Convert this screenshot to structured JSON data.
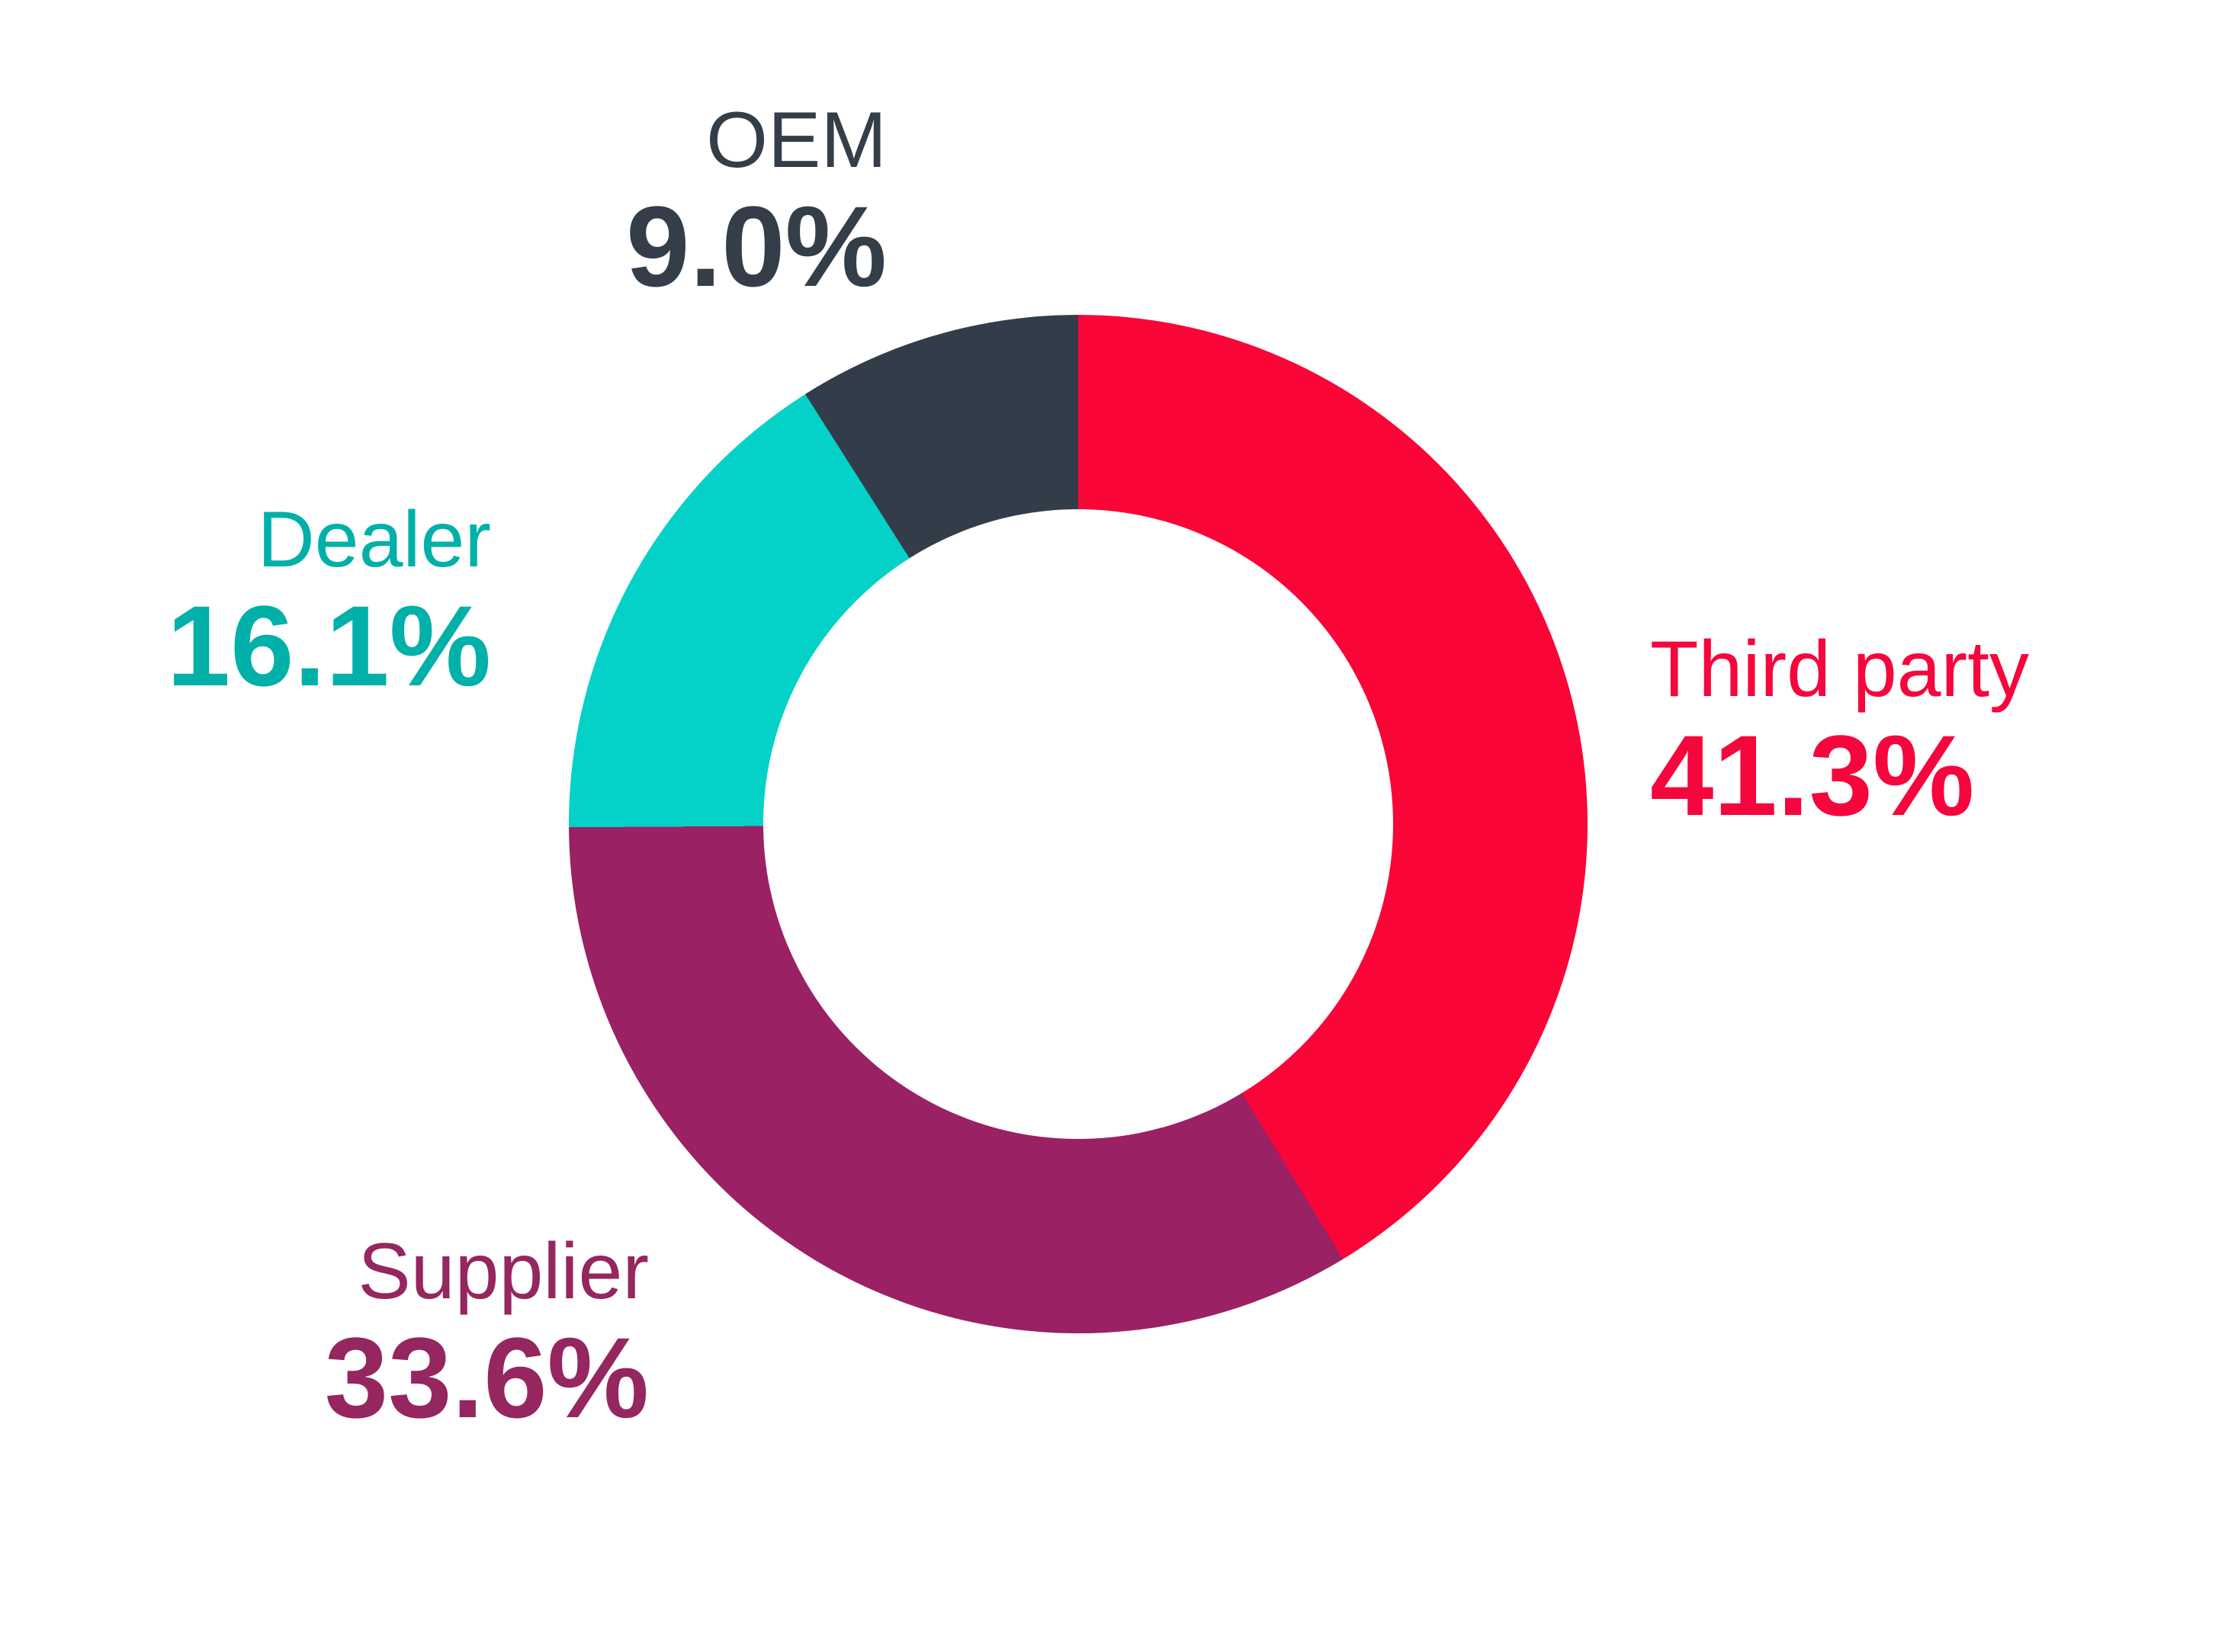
{
  "page": {
    "background": "#FFFFFF"
  },
  "chart_data": {
    "type": "pie",
    "subtype": "donut",
    "title": "",
    "unit": "%",
    "direction": "clockwise",
    "start_angle_deg": 0,
    "inner_radius_ratio": 0.62,
    "legend_position": "outside-labels",
    "slices": [
      {
        "label": "Third party",
        "value": 41.3,
        "display_value": "41.3%",
        "color": "#FA0537",
        "label_color": "#F5063C"
      },
      {
        "label": "Supplier",
        "value": 33.6,
        "display_value": "33.6%",
        "color": "#9A2164",
        "label_color": "#95265F"
      },
      {
        "label": "Dealer",
        "value": 16.1,
        "display_value": "16.1%",
        "color": "#04D2C8",
        "label_color": "#00B0A9"
      },
      {
        "label": "OEM",
        "value": 9.0,
        "display_value": "9.0%",
        "color": "#333D4A",
        "label_color": "#333E48"
      }
    ]
  }
}
